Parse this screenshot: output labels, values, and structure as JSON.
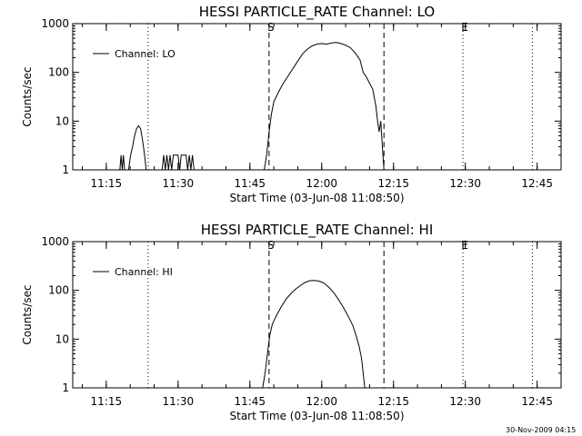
{
  "chart_data": [
    {
      "type": "line",
      "title": "HESSI PARTICLE_RATE Channel: LO",
      "xlabel": "Start Time (03-Jun-08 11:08:50)",
      "ylabel": "Counts/sec",
      "yscale": "log",
      "xlim": [
        "11:08",
        "12:50"
      ],
      "ylim": [
        1,
        1000
      ],
      "xticks": [
        "11:15",
        "11:30",
        "11:45",
        "12:00",
        "12:15",
        "12:30",
        "12:45"
      ],
      "yticks": [
        "1",
        "10",
        "100",
        "1000"
      ],
      "legend": "top-left",
      "grid": false,
      "markers": [
        {
          "label": "S",
          "time": "11:49:00",
          "style": "dashed"
        },
        {
          "label": "",
          "time": "12:13:00",
          "style": "dashed"
        },
        {
          "label": "E",
          "time": "12:29:30",
          "style": "dotted"
        },
        {
          "label": "",
          "time": "11:23:45",
          "style": "dotted"
        },
        {
          "label": "",
          "time": "12:44:00",
          "style": "dotted"
        }
      ],
      "series": [
        {
          "name": "Channel: LO",
          "segments": [
            [
              [
                "11:17:50",
                1
              ],
              [
                "11:18:05",
                2
              ],
              [
                "11:18:20",
                1
              ],
              [
                "11:18:35",
                2
              ],
              [
                "11:18:50",
                1
              ]
            ],
            [
              [
                "11:19:40",
                1
              ],
              [
                "11:20:05",
                2
              ],
              [
                "11:20:30",
                3
              ],
              [
                "11:20:55",
                5
              ],
              [
                "11:21:20",
                7
              ],
              [
                "11:21:45",
                8
              ],
              [
                "11:22:10",
                7
              ],
              [
                "11:22:35",
                4
              ],
              [
                "11:23:00",
                2
              ],
              [
                "11:23:20",
                1
              ]
            ],
            [
              [
                "11:26:40",
                1
              ],
              [
                "11:27:00",
                2
              ],
              [
                "11:27:20",
                1
              ],
              [
                "11:27:40",
                2
              ],
              [
                "11:28:00",
                1
              ],
              [
                "11:28:20",
                2
              ],
              [
                "11:28:40",
                1
              ],
              [
                "11:29:00",
                2
              ],
              [
                "11:30:00",
                2
              ],
              [
                "11:30:20",
                1
              ],
              [
                "11:30:40",
                2
              ],
              [
                "11:31:40",
                2
              ],
              [
                "11:32:00",
                1
              ],
              [
                "11:32:20",
                2
              ],
              [
                "11:32:40",
                1
              ],
              [
                "11:33:00",
                2
              ],
              [
                "11:33:20",
                1
              ]
            ],
            [
              [
                "11:48:00",
                1
              ],
              [
                "11:48:30",
                2
              ],
              [
                "11:49:00",
                6
              ],
              [
                "11:49:30",
                14
              ],
              [
                "11:50:00",
                25
              ],
              [
                "11:51:00",
                40
              ],
              [
                "11:52:00",
                60
              ],
              [
                "11:53:00",
                85
              ],
              [
                "11:54:00",
                120
              ],
              [
                "11:55:00",
                170
              ],
              [
                "11:56:00",
                240
              ],
              [
                "11:57:00",
                300
              ],
              [
                "11:58:00",
                350
              ],
              [
                "11:59:00",
                380
              ],
              [
                "12:00:00",
                390
              ],
              [
                "12:01:00",
                380
              ],
              [
                "12:02:00",
                400
              ],
              [
                "12:03:00",
                410
              ],
              [
                "12:04:00",
                390
              ],
              [
                "12:05:00",
                360
              ],
              [
                "12:06:00",
                320
              ],
              [
                "12:07:00",
                250
              ],
              [
                "12:08:00",
                180
              ],
              [
                "12:08:40",
                100
              ],
              [
                "12:09:20",
                80
              ],
              [
                "12:10:00",
                60
              ],
              [
                "12:10:40",
                45
              ],
              [
                "12:11:20",
                20
              ],
              [
                "12:11:40",
                10
              ],
              [
                "12:12:00",
                6
              ],
              [
                "12:12:20",
                10
              ],
              [
                "12:12:40",
                3
              ],
              [
                "12:13:00",
                1
              ]
            ]
          ]
        }
      ]
    },
    {
      "type": "line",
      "title": "HESSI PARTICLE_RATE Channel: HI",
      "xlabel": "Start Time (03-Jun-08 11:08:50)",
      "ylabel": "Counts/sec",
      "yscale": "log",
      "xlim": [
        "11:08",
        "12:50"
      ],
      "ylim": [
        1,
        1000
      ],
      "xticks": [
        "11:15",
        "11:30",
        "11:45",
        "12:00",
        "12:15",
        "12:30",
        "12:45"
      ],
      "yticks": [
        "1",
        "10",
        "100",
        "1000"
      ],
      "legend": "top-left",
      "grid": false,
      "markers": [
        {
          "label": "S",
          "time": "11:49:00",
          "style": "dashed"
        },
        {
          "label": "",
          "time": "12:13:00",
          "style": "dashed"
        },
        {
          "label": "E",
          "time": "12:29:30",
          "style": "dotted"
        },
        {
          "label": "",
          "time": "11:23:45",
          "style": "dotted"
        },
        {
          "label": "",
          "time": "12:44:00",
          "style": "dotted"
        }
      ],
      "series": [
        {
          "name": "Channel: HI",
          "segments": [
            [
              [
                "11:47:40",
                1
              ],
              [
                "11:48:10",
                2
              ],
              [
                "11:48:40",
                5
              ],
              [
                "11:49:10",
                12
              ],
              [
                "11:49:40",
                20
              ],
              [
                "11:50:30",
                30
              ],
              [
                "11:51:30",
                45
              ],
              [
                "11:52:30",
                65
              ],
              [
                "11:53:30",
                85
              ],
              [
                "11:54:30",
                105
              ],
              [
                "11:55:30",
                125
              ],
              [
                "11:56:30",
                145
              ],
              [
                "11:57:30",
                158
              ],
              [
                "11:58:30",
                160
              ],
              [
                "11:59:30",
                155
              ],
              [
                "12:00:30",
                140
              ],
              [
                "12:01:30",
                115
              ],
              [
                "12:02:30",
                90
              ],
              [
                "12:03:30",
                65
              ],
              [
                "12:04:30",
                45
              ],
              [
                "12:05:30",
                30
              ],
              [
                "12:06:30",
                19
              ],
              [
                "12:07:10",
                12
              ],
              [
                "12:07:50",
                7
              ],
              [
                "12:08:20",
                4
              ],
              [
                "12:08:40",
                2
              ],
              [
                "12:09:00",
                1
              ]
            ]
          ]
        }
      ]
    }
  ],
  "footer": {
    "timestamp": "30-Nov-2009 04:15"
  }
}
